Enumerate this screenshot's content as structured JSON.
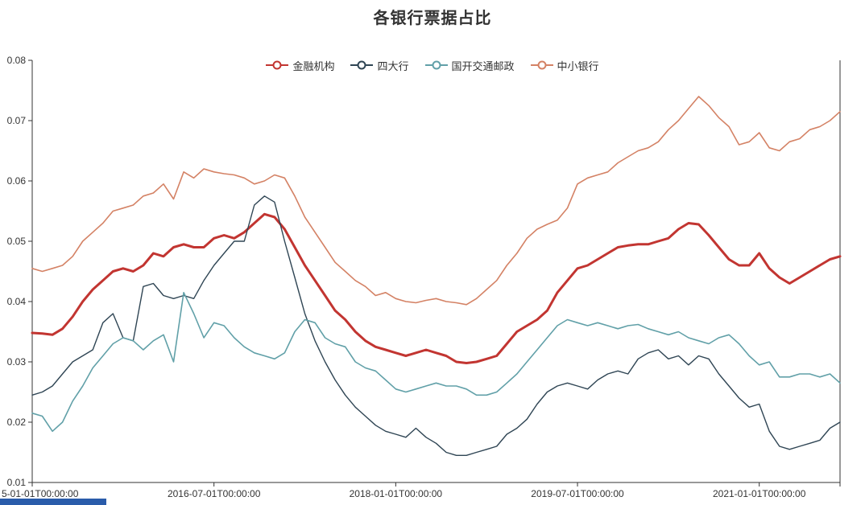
{
  "page": {
    "background": "#ffffff"
  },
  "decor": {
    "bottom_strip_color": "#2a5caa"
  },
  "chart_data": {
    "type": "line",
    "title": "各银行票据占比",
    "grid": false,
    "legend": {
      "position": "top",
      "items": [
        "金融机构",
        "四大行",
        "国开交通邮政",
        "中小银行"
      ]
    },
    "x_axis": {
      "tick_labels": [
        "5-01-01T00:00:00",
        "2016-07-01T00:00:00",
        "2018-01-01T00:00:00",
        "2019-07-01T00:00:00",
        "2021-01-01T00:00:00"
      ],
      "tick_indices": [
        0,
        18,
        36,
        54,
        72
      ],
      "points_span": "monthly from 2015-01 to 2021-09"
    },
    "y_axis": {
      "min": 0.01,
      "max": 0.08,
      "tick_labels": [
        "0.01",
        "0.02",
        "0.03",
        "0.04",
        "0.05",
        "0.06",
        "0.07",
        "0.08"
      ]
    },
    "series": [
      {
        "name": "金融机构",
        "color": "#c23531",
        "line_width": 3,
        "values": [
          0.0348,
          0.0347,
          0.0345,
          0.0355,
          0.0375,
          0.04,
          0.042,
          0.0435,
          0.045,
          0.0455,
          0.045,
          0.046,
          0.048,
          0.0475,
          0.049,
          0.0495,
          0.049,
          0.049,
          0.0505,
          0.051,
          0.0505,
          0.0515,
          0.053,
          0.0545,
          0.054,
          0.052,
          0.049,
          0.046,
          0.0435,
          0.041,
          0.0385,
          0.037,
          0.035,
          0.0335,
          0.0325,
          0.032,
          0.0315,
          0.031,
          0.0315,
          0.032,
          0.0315,
          0.031,
          0.03,
          0.0298,
          0.03,
          0.0305,
          0.031,
          0.033,
          0.035,
          0.036,
          0.037,
          0.0385,
          0.0415,
          0.0435,
          0.0455,
          0.046,
          0.047,
          0.048,
          0.049,
          0.0493,
          0.0495,
          0.0495,
          0.05,
          0.0505,
          0.052,
          0.053,
          0.0528,
          0.051,
          0.049,
          0.047,
          0.046,
          0.046,
          0.048,
          0.0455,
          0.044,
          0.043,
          0.044,
          0.045,
          0.046,
          0.047,
          0.0475
        ]
      },
      {
        "name": "四大行",
        "color": "#2f4554",
        "line_width": 1.4,
        "values": [
          0.0245,
          0.025,
          0.026,
          0.028,
          0.03,
          0.031,
          0.032,
          0.0365,
          0.038,
          0.034,
          0.0335,
          0.0425,
          0.043,
          0.041,
          0.0405,
          0.041,
          0.0405,
          0.0435,
          0.046,
          0.048,
          0.05,
          0.05,
          0.056,
          0.0575,
          0.0565,
          0.05,
          0.044,
          0.038,
          0.0335,
          0.03,
          0.027,
          0.0245,
          0.0225,
          0.021,
          0.0195,
          0.0185,
          0.018,
          0.0175,
          0.019,
          0.0175,
          0.0165,
          0.015,
          0.0145,
          0.0145,
          0.015,
          0.0155,
          0.016,
          0.018,
          0.019,
          0.0205,
          0.023,
          0.025,
          0.026,
          0.0265,
          0.026,
          0.0255,
          0.027,
          0.028,
          0.0285,
          0.028,
          0.0305,
          0.0315,
          0.032,
          0.0305,
          0.031,
          0.0295,
          0.031,
          0.0305,
          0.028,
          0.026,
          0.024,
          0.0225,
          0.023,
          0.0185,
          0.016,
          0.0155,
          0.016,
          0.0165,
          0.017,
          0.019,
          0.02
        ]
      },
      {
        "name": "国开交通邮政",
        "color": "#61a0a8",
        "line_width": 1.6,
        "values": [
          0.0215,
          0.021,
          0.0185,
          0.02,
          0.0235,
          0.026,
          0.029,
          0.031,
          0.033,
          0.034,
          0.0335,
          0.032,
          0.0335,
          0.0345,
          0.03,
          0.0415,
          0.038,
          0.034,
          0.0365,
          0.036,
          0.034,
          0.0325,
          0.0315,
          0.031,
          0.0305,
          0.0315,
          0.035,
          0.037,
          0.0365,
          0.034,
          0.033,
          0.0325,
          0.03,
          0.029,
          0.0285,
          0.027,
          0.0255,
          0.025,
          0.0255,
          0.026,
          0.0265,
          0.026,
          0.026,
          0.0255,
          0.0245,
          0.0245,
          0.025,
          0.0265,
          0.028,
          0.03,
          0.032,
          0.034,
          0.036,
          0.037,
          0.0365,
          0.036,
          0.0365,
          0.036,
          0.0355,
          0.036,
          0.0362,
          0.0355,
          0.035,
          0.0345,
          0.035,
          0.034,
          0.0335,
          0.033,
          0.034,
          0.0345,
          0.033,
          0.031,
          0.0295,
          0.03,
          0.0275,
          0.0275,
          0.028,
          0.028,
          0.0275,
          0.028,
          0.0265
        ]
      },
      {
        "name": "中小银行",
        "color": "#d48265",
        "line_width": 1.6,
        "values": [
          0.0455,
          0.045,
          0.0455,
          0.046,
          0.0475,
          0.05,
          0.0515,
          0.053,
          0.055,
          0.0555,
          0.056,
          0.0575,
          0.058,
          0.0595,
          0.057,
          0.0615,
          0.0605,
          0.062,
          0.0615,
          0.0612,
          0.061,
          0.0605,
          0.0595,
          0.06,
          0.061,
          0.0605,
          0.0575,
          0.054,
          0.0515,
          0.049,
          0.0465,
          0.045,
          0.0435,
          0.0425,
          0.041,
          0.0415,
          0.0405,
          0.04,
          0.0398,
          0.0402,
          0.0405,
          0.04,
          0.0398,
          0.0395,
          0.0405,
          0.042,
          0.0435,
          0.046,
          0.048,
          0.0505,
          0.052,
          0.0528,
          0.0535,
          0.0555,
          0.0595,
          0.0605,
          0.061,
          0.0615,
          0.063,
          0.064,
          0.065,
          0.0655,
          0.0665,
          0.0685,
          0.07,
          0.072,
          0.074,
          0.0725,
          0.0705,
          0.069,
          0.066,
          0.0665,
          0.068,
          0.0655,
          0.065,
          0.0665,
          0.067,
          0.0685,
          0.069,
          0.07,
          0.0715
        ]
      }
    ]
  }
}
